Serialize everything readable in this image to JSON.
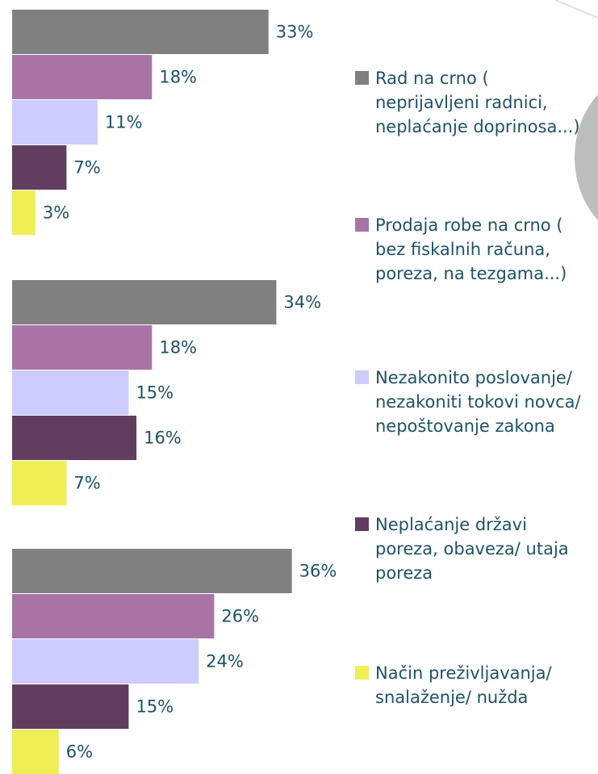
{
  "chart_data": {
    "type": "bar",
    "orientation": "horizontal",
    "categories": [
      null,
      null,
      null
    ],
    "series": [
      {
        "name": "Rad na crno ( neprijavljeni radnici, neplaćanje doprinosa...)",
        "color": "#808080",
        "values": [
          33,
          34,
          36
        ],
        "value_labels": [
          "33%",
          "34%",
          "36%"
        ]
      },
      {
        "name": "Prodaja robe na crno ( bez fiskalnih računa, poreza, na tezgama...)",
        "color": "#a874a6",
        "values": [
          18,
          18,
          26
        ],
        "value_labels": [
          "18%",
          "18%",
          "26%"
        ]
      },
      {
        "name": "Nezakonito poslovanje/ nezakoniti tokovi novca/ nepoštovanje zakona",
        "color": "#ccccff",
        "values": [
          11,
          15,
          24
        ],
        "value_labels": [
          "11%",
          "15%",
          "24%"
        ]
      },
      {
        "name": "Neplaćanje državi poreza, obaveza/ utaja poreza",
        "color": "#633d5f",
        "values": [
          7,
          16,
          15
        ],
        "value_labels": [
          "7%",
          "16%",
          "15%"
        ]
      },
      {
        "name": "Način preživljavanja/ snalaženje/ nužda",
        "color": "#eeee55",
        "values": [
          3,
          7,
          6
        ],
        "value_labels": [
          "3%",
          "7%",
          "6%"
        ]
      }
    ]
  }
}
